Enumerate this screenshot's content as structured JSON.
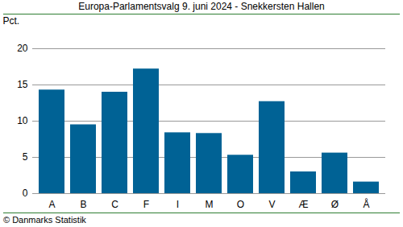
{
  "chart_data": {
    "type": "bar",
    "title": "Europa-Parlamentsvalg 9. juni 2024 - Snekkersten Hallen",
    "y_label": "Pct.",
    "caption": "© Danmarks Statistik",
    "categories": [
      "A",
      "B",
      "C",
      "F",
      "I",
      "M",
      "O",
      "V",
      "Æ",
      "Ø",
      "Å"
    ],
    "values": [
      14.3,
      9.5,
      14.0,
      17.2,
      8.4,
      8.3,
      5.3,
      12.7,
      3.0,
      5.6,
      1.6
    ],
    "color": "#006295",
    "ylim": [
      0,
      20
    ],
    "yticks": [
      0,
      5,
      10,
      15,
      20
    ],
    "grid": true
  }
}
